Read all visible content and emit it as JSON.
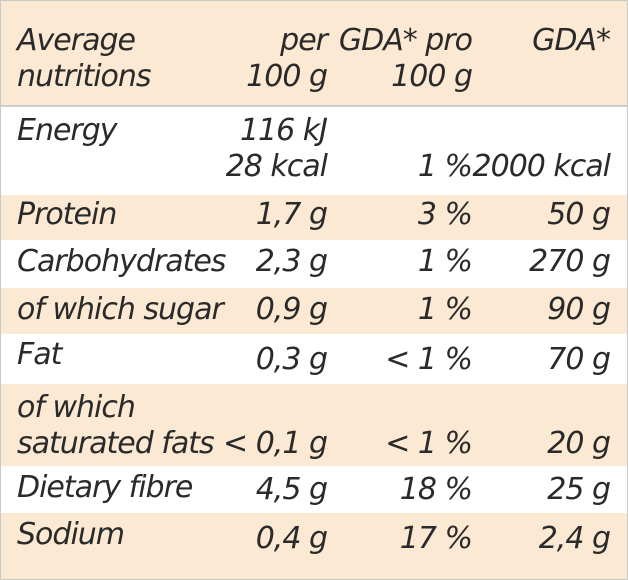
{
  "header": {
    "c0": [
      "Average",
      "nutritions"
    ],
    "c1": [
      "per",
      "100 g"
    ],
    "c2": [
      "GDA* pro",
      "100 g"
    ],
    "c3": [
      "GDA*",
      ""
    ]
  },
  "rows": [
    {
      "name": "Energy",
      "per100": [
        "116 kJ",
        "28 kcal"
      ],
      "gda_pct": "1 %",
      "gda": "2000 kcal"
    },
    {
      "name": "Protein",
      "per100": "1,7 g",
      "gda_pct": "3 %",
      "gda": "50 g"
    },
    {
      "name": "Carbohydrates",
      "per100": "2,3 g",
      "gda_pct": "1 %",
      "gda": "270 g"
    },
    {
      "name": "of which sugar",
      "per100": "0,9 g",
      "gda_pct": "1 %",
      "gda": "90 g"
    },
    {
      "name": "Fat",
      "per100": "0,3 g",
      "gda_pct": "< 1 %",
      "gda": "70 g"
    },
    {
      "name": [
        "of which",
        "saturated fats"
      ],
      "per100": "< 0,1 g",
      "gda_pct": "< 1 %",
      "gda": "20 g"
    },
    {
      "name": "Dietary fibre",
      "per100": "4,5 g",
      "gda_pct": "18 %",
      "gda": "25 g"
    },
    {
      "name": "Sodium",
      "per100": "0,4 g",
      "gda_pct": "17 %",
      "gda": "2,4 g"
    }
  ],
  "colors": {
    "header_bg": "#fbe9d3",
    "stripe_bg": "#fbe9d3",
    "white_bg": "#ffffff",
    "text": "#2a2a2a"
  }
}
